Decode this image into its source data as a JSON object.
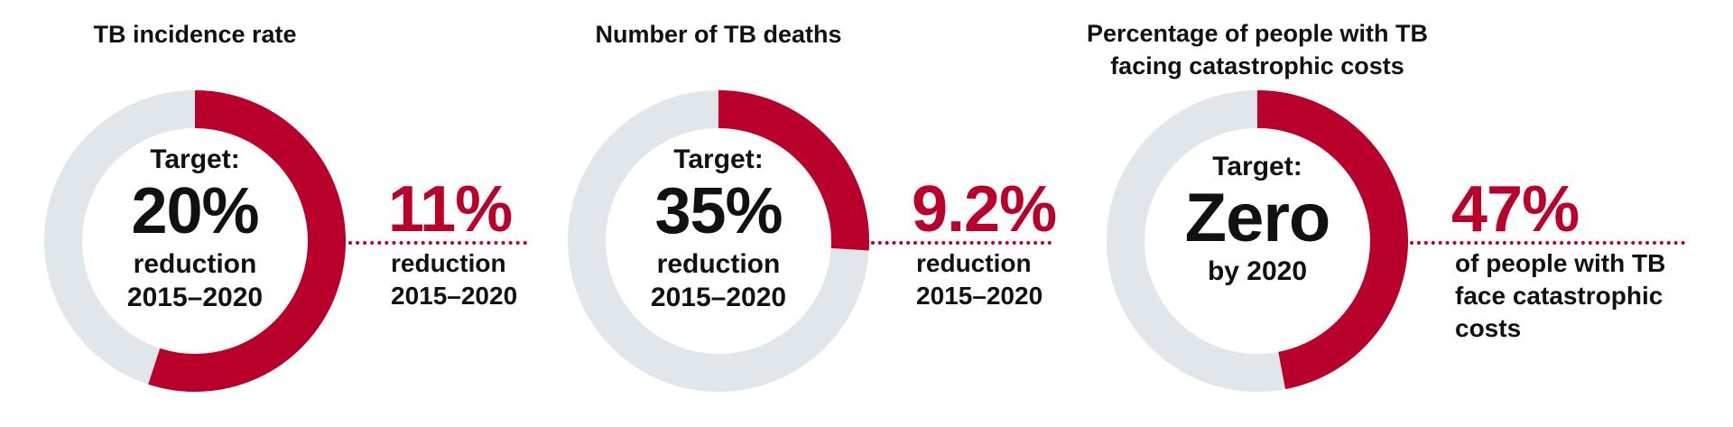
{
  "colors": {
    "achieved": "#B8002B",
    "remaining": "#E1E6EA",
    "text": "#111111"
  },
  "panels": [
    {
      "title": [
        "TB incidence rate"
      ],
      "target_label": "Target:",
      "target_value": "20%",
      "target_sub": [
        "reduction",
        "2015–2020"
      ],
      "achieved_value": "11%",
      "achieved_sub": [
        "reduction",
        "2015–2020"
      ]
    },
    {
      "title": [
        "Number of TB deaths"
      ],
      "target_label": "Target:",
      "target_value": "35%",
      "target_sub": [
        "reduction",
        "2015–2020"
      ],
      "achieved_value": "9.2%",
      "achieved_sub": [
        "reduction",
        "2015–2020"
      ]
    },
    {
      "title": [
        "Percentage of people with TB",
        "facing catastrophic costs"
      ],
      "target_label": "Target:",
      "target_value": "Zero",
      "target_sub": [
        "by 2020"
      ],
      "achieved_value": "47%",
      "achieved_sub": [
        "of people with TB",
        "face catastrophic",
        "costs"
      ]
    }
  ],
  "chart_data": [
    {
      "type": "pie",
      "variant": "donut",
      "title": "TB incidence rate",
      "filled_fraction_percent": 55,
      "achieved": 11,
      "target": 20,
      "unit": "%"
    },
    {
      "type": "pie",
      "variant": "donut",
      "title": "Number of TB deaths",
      "filled_fraction_percent": 26,
      "achieved": 9.2,
      "target": 35,
      "unit": "%"
    },
    {
      "type": "pie",
      "variant": "donut",
      "title": "Percentage of people with TB facing catastrophic costs",
      "filled_fraction_percent": 47,
      "achieved": 47,
      "target": 0,
      "unit": "%"
    }
  ]
}
